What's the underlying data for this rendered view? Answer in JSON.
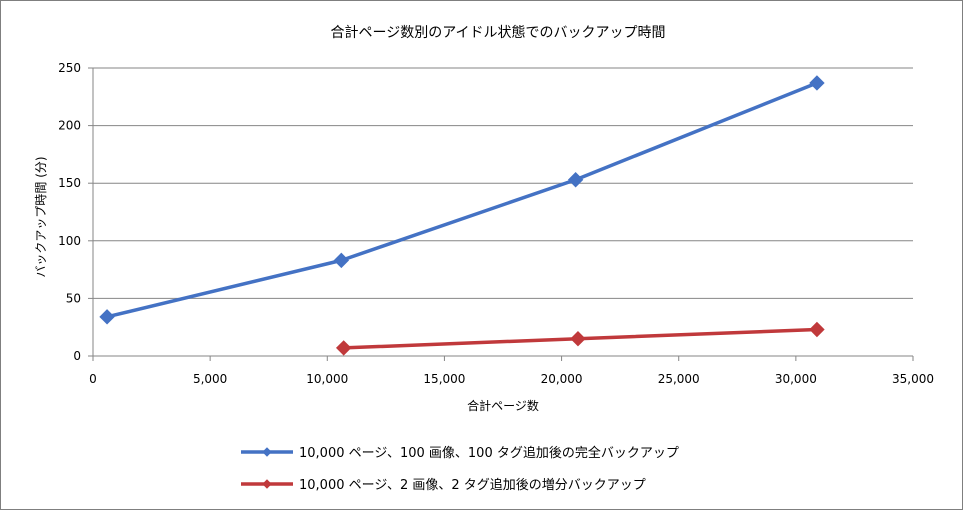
{
  "chart_data": {
    "type": "line",
    "title": "合計ページ数別のアイドル状態でのバックアップ時間",
    "xlabel": "合計ページ数",
    "ylabel": "バックアップ時間 (分)",
    "xlim": [
      0,
      35000
    ],
    "ylim": [
      0,
      250
    ],
    "xticks": [
      0,
      5000,
      10000,
      15000,
      20000,
      25000,
      30000,
      35000
    ],
    "xtick_labels": [
      "0",
      "5,000",
      "10,000",
      "15,000",
      "20,000",
      "25,000",
      "30,000",
      "35,000"
    ],
    "yticks": [
      0,
      50,
      100,
      150,
      200,
      250
    ],
    "ytick_labels": [
      "0",
      "50",
      "100",
      "150",
      "200",
      "250"
    ],
    "grid": "horizontal",
    "legend_position": "bottom",
    "series": [
      {
        "name": "10,000 ページ、100 画像、100 タグ追加後の完全バックアップ",
        "color": "#4472c4",
        "marker": "diamond",
        "x": [
          600,
          10600,
          20600,
          30900
        ],
        "y": [
          34,
          83,
          153,
          237
        ]
      },
      {
        "name": "10,000 ページ、2 画像、2 タグ追加後の増分バックアップ",
        "color": "#c0393b",
        "marker": "diamond",
        "x": [
          10700,
          20700,
          30900
        ],
        "y": [
          7,
          15,
          23
        ]
      }
    ]
  }
}
